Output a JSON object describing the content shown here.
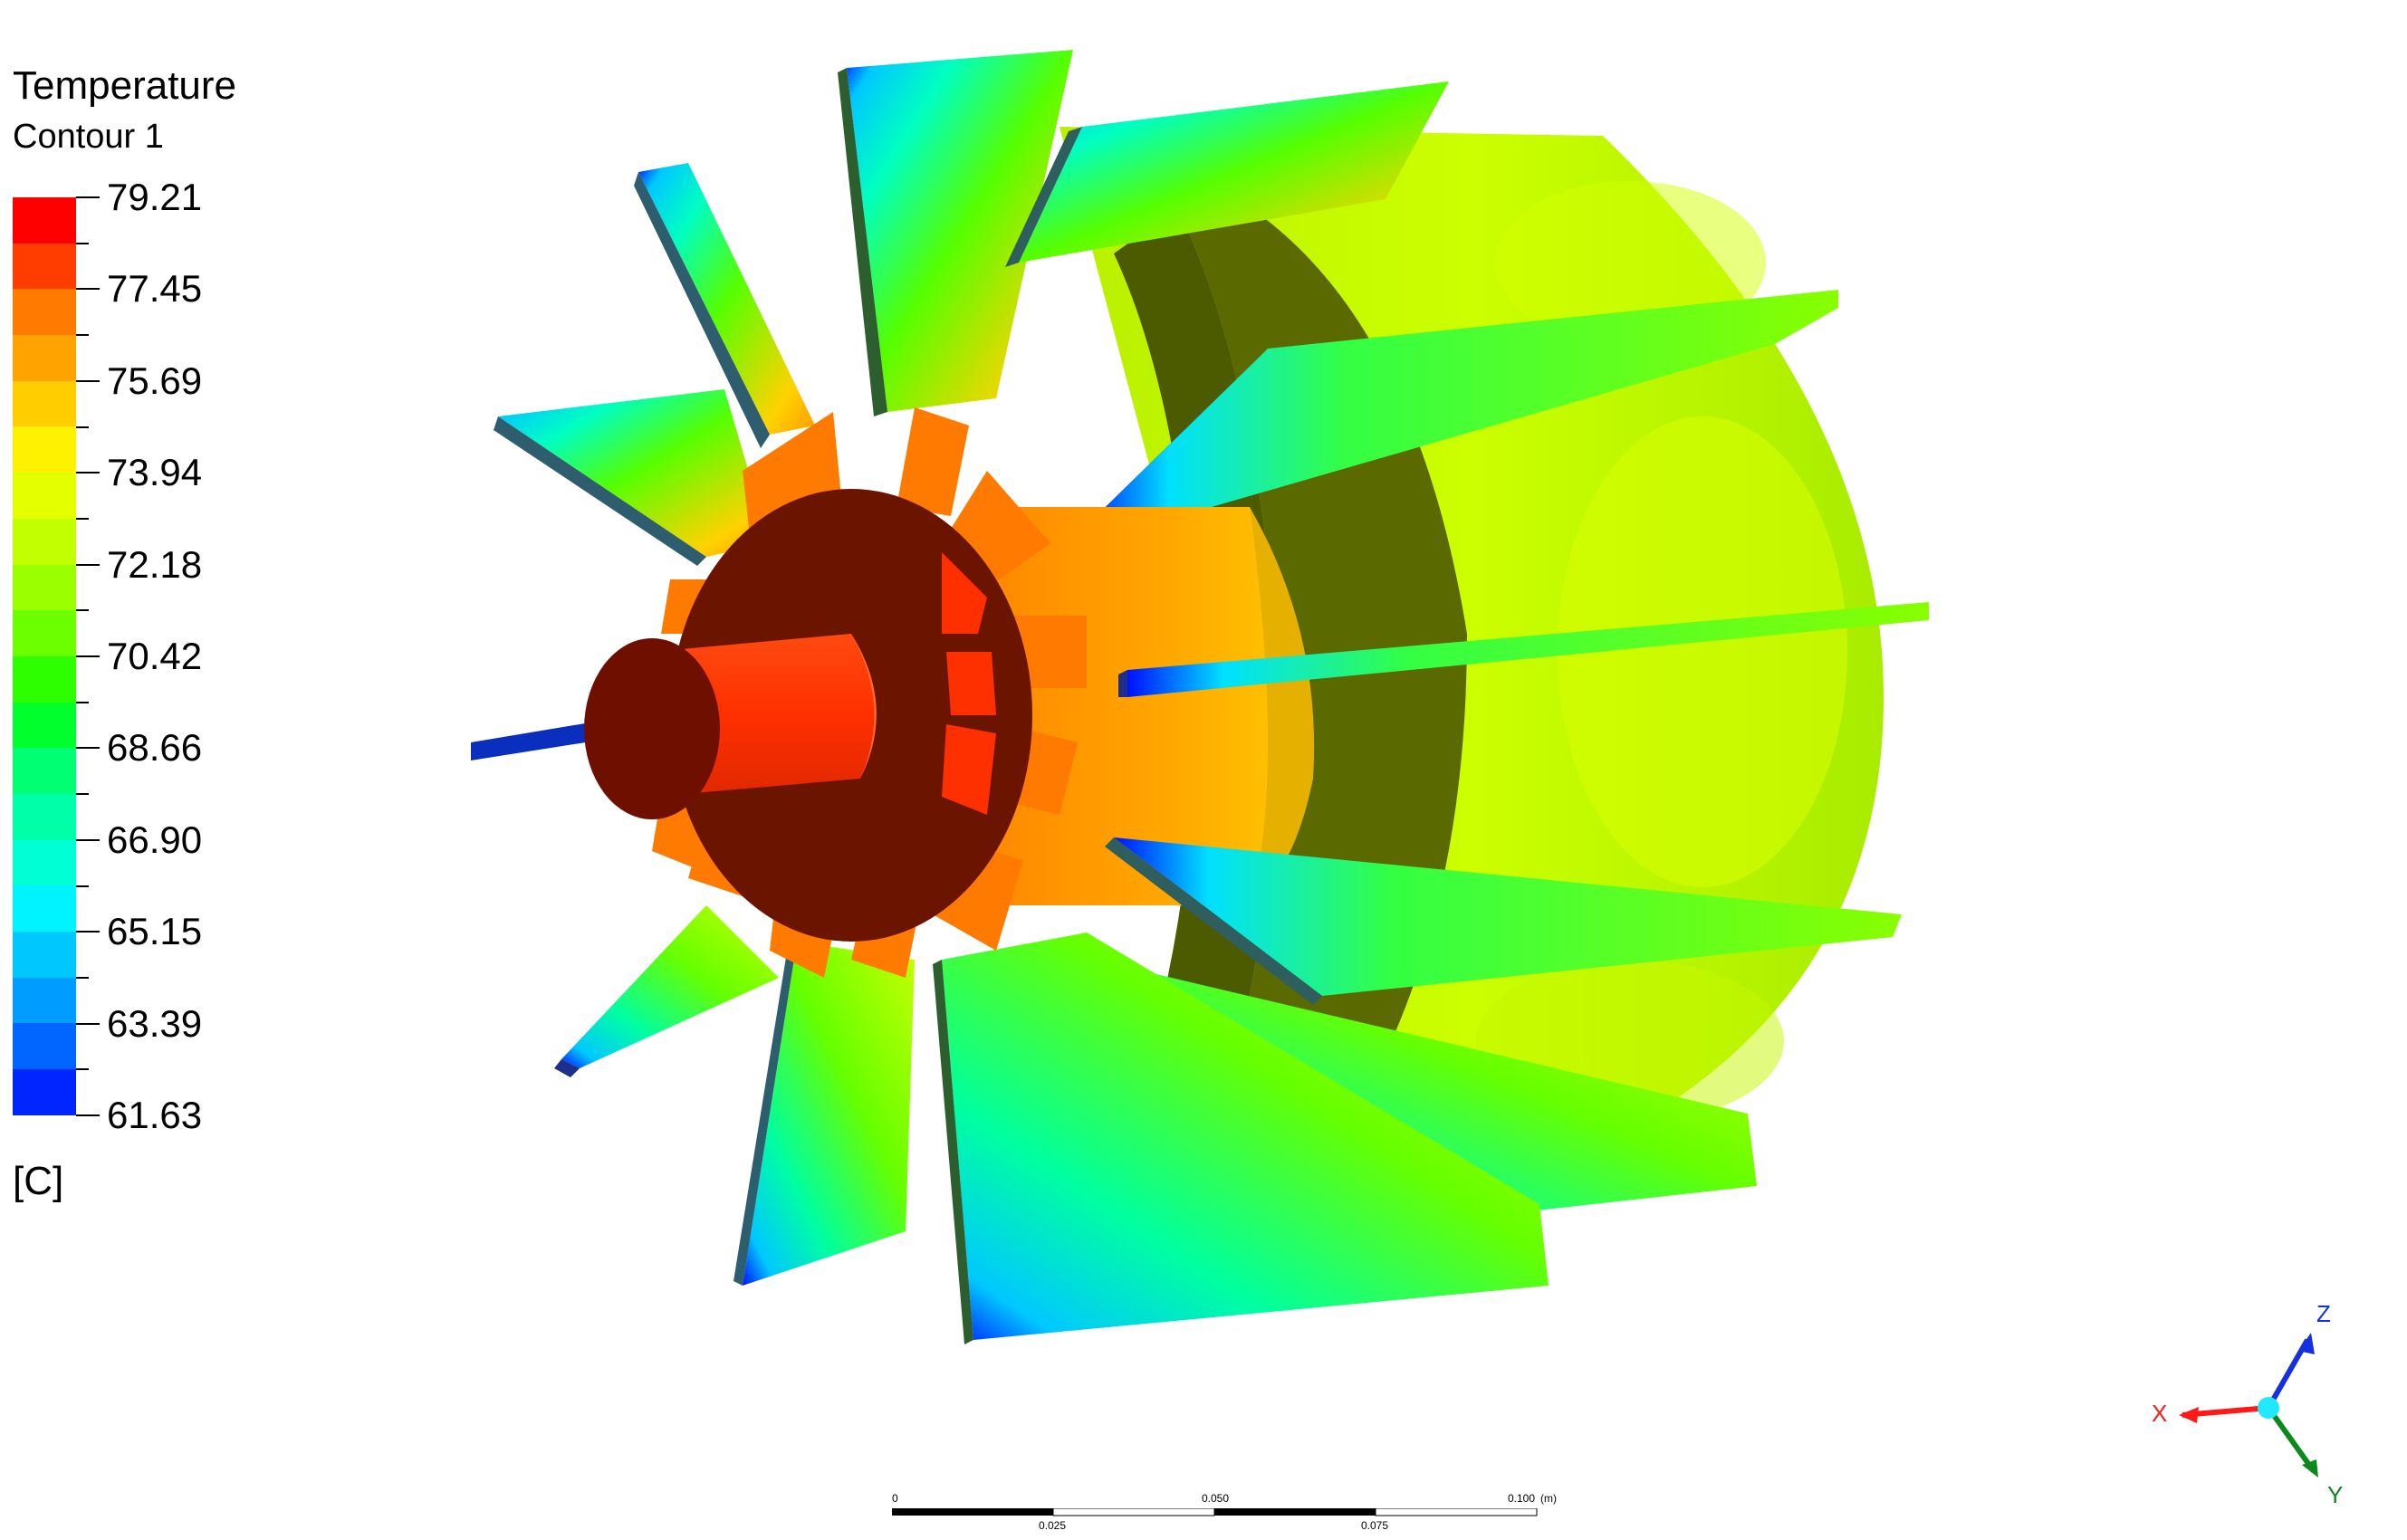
{
  "legend": {
    "title": "Temperature",
    "subtitle": "Contour 1",
    "unit": "[C]",
    "values": [
      "79.21",
      "77.45",
      "75.69",
      "73.94",
      "72.18",
      "70.42",
      "68.66",
      "66.90",
      "65.15",
      "63.39",
      "61.63"
    ],
    "band_colors": [
      "#ff0000",
      "#ff3d00",
      "#ff7a00",
      "#ffa300",
      "#ffcd00",
      "#fff200",
      "#e4ff00",
      "#c2ff00",
      "#9cff00",
      "#6cff00",
      "#2eff00",
      "#00ff2c",
      "#00ff73",
      "#00ffa9",
      "#00ffd4",
      "#00f4ff",
      "#00c8ff",
      "#009cff",
      "#0066ff",
      "#0025ff"
    ]
  },
  "scale": {
    "top_labels": [
      "0",
      "0.050",
      "0.100"
    ],
    "unit": "(m)",
    "bottom_labels": [
      "0.025",
      "0.075"
    ]
  },
  "axes": {
    "x_label": "X",
    "y_label": "Y",
    "z_label": "Z",
    "x_color": "#ff1a1a",
    "y_color": "#0a8a1a",
    "z_color": "#1530e0"
  },
  "model": {
    "colors": {
      "shaft_cap": "#6e0f00",
      "shaft": "#ff3300",
      "hub_face": "#6b1400",
      "spokes": "#ff7a00",
      "stator_inner": "#5a5000",
      "stator_band": "#ffa500",
      "rim": "#ccff00",
      "rim_dark": "#6b7a00",
      "fin_green": "#66ff00",
      "fin_cyan": "#00ffee",
      "fin_blue": "#0010ff",
      "fin_edge": "#2d5e2d"
    }
  }
}
